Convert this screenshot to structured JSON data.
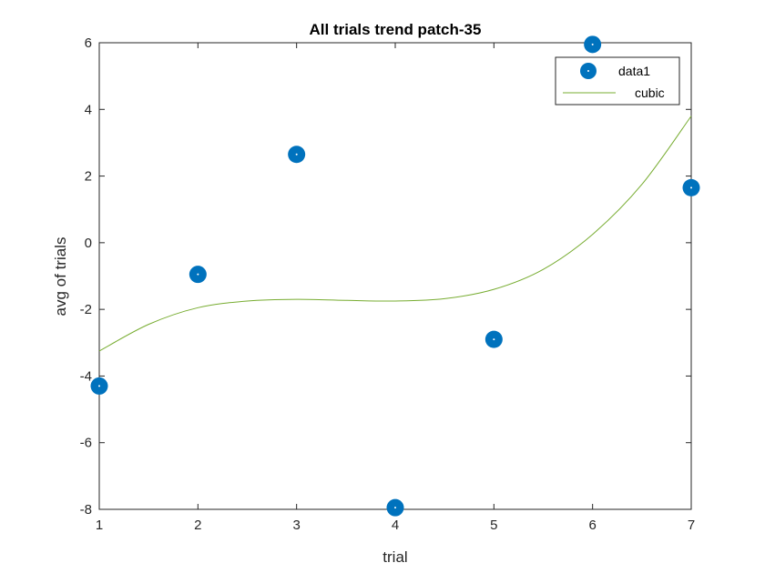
{
  "chart_data": {
    "type": "scatter",
    "title": "All trials trend patch-35",
    "xlabel": "trial",
    "ylabel": "avg of trials",
    "xlim": [
      1,
      7
    ],
    "ylim": [
      -8,
      6
    ],
    "xticks": [
      1,
      2,
      3,
      4,
      5,
      6,
      7
    ],
    "yticks": [
      -8,
      -6,
      -4,
      -2,
      0,
      2,
      4,
      6
    ],
    "xtick_labels": [
      "1",
      "2",
      "3",
      "4",
      "5",
      "6",
      "7"
    ],
    "ytick_labels": [
      "-8",
      "-6",
      "-4",
      "-2",
      "0",
      "2",
      "4",
      "6"
    ],
    "grid": false,
    "legend_position": "top-right",
    "series": [
      {
        "name": "data1",
        "kind": "scatter",
        "color": "#0072BD",
        "x": [
          1,
          2,
          3,
          4,
          5,
          6,
          7
        ],
        "y": [
          -4.3,
          -0.95,
          2.65,
          -7.95,
          -2.9,
          5.95,
          1.65
        ]
      },
      {
        "name": "cubic",
        "kind": "line",
        "color": "#77AC30",
        "x": [
          1,
          1.5,
          2,
          2.5,
          3,
          3.5,
          4,
          4.5,
          5,
          5.5,
          6,
          6.5,
          7
        ],
        "y": [
          -3.25,
          -2.45,
          -1.95,
          -1.75,
          -1.7,
          -1.73,
          -1.75,
          -1.68,
          -1.4,
          -0.8,
          0.25,
          1.75,
          3.8
        ]
      }
    ]
  }
}
